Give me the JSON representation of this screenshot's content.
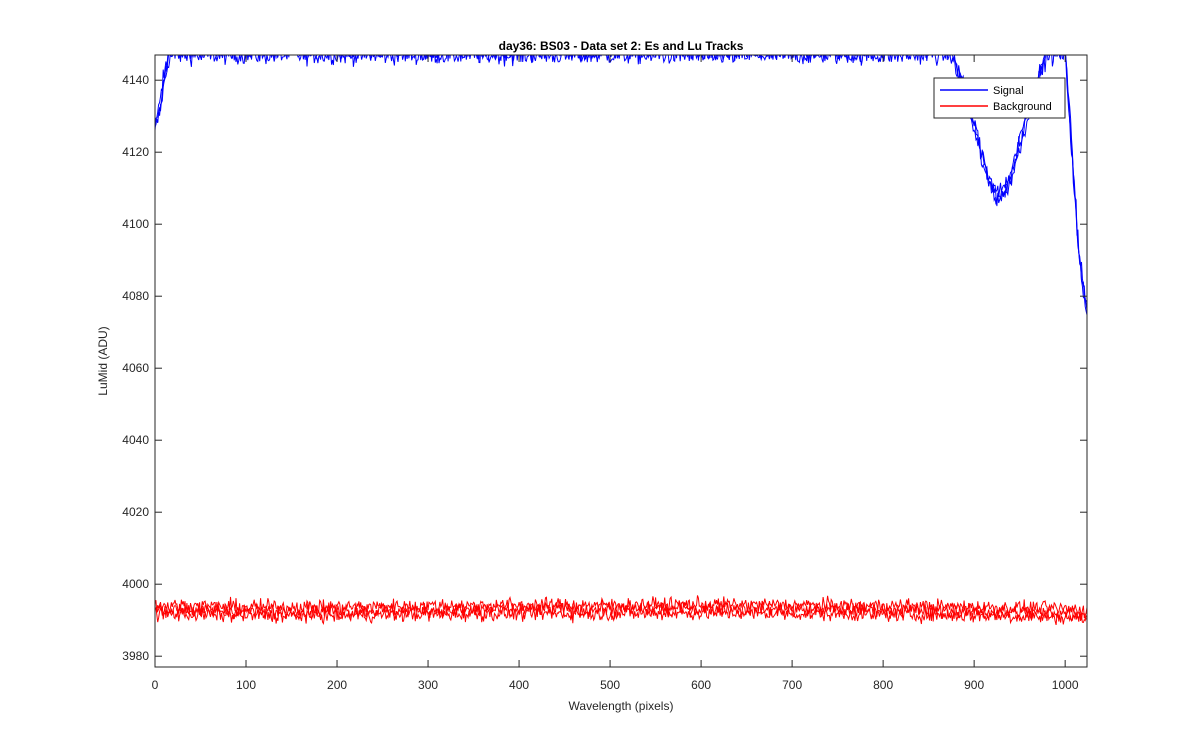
{
  "chart_data": {
    "type": "line",
    "title": "day36: BS03 - Data set 2: Es and Lu Tracks",
    "xlabel": "Wavelength (pixels)",
    "ylabel": "LuMid (ADU)",
    "xlim": [
      0,
      1024
    ],
    "ylim": [
      3977,
      4147
    ],
    "xticks": [
      0,
      100,
      200,
      300,
      400,
      500,
      600,
      700,
      800,
      900,
      1000
    ],
    "yticks": [
      3980,
      4000,
      4020,
      4040,
      4060,
      4080,
      4100,
      4120,
      4140
    ],
    "grid": false,
    "legend_position": "top-right",
    "series": [
      {
        "name": "Signal",
        "color": "#0000ff",
        "tracks": 3,
        "noise": 1.2,
        "points": [
          [
            0,
            4127
          ],
          [
            5,
            4132
          ],
          [
            10,
            4140
          ],
          [
            16,
            4148
          ],
          [
            875,
            4148
          ],
          [
            885,
            4140
          ],
          [
            895,
            4132
          ],
          [
            905,
            4122
          ],
          [
            915,
            4113
          ],
          [
            925,
            4108
          ],
          [
            932,
            4109
          ],
          [
            940,
            4113
          ],
          [
            950,
            4122
          ],
          [
            960,
            4132
          ],
          [
            970,
            4140
          ],
          [
            980,
            4148
          ],
          [
            1000,
            4148
          ],
          [
            1005,
            4130
          ],
          [
            1010,
            4110
          ],
          [
            1015,
            4092
          ],
          [
            1020,
            4082
          ],
          [
            1024,
            4077
          ]
        ]
      },
      {
        "name": "Background",
        "color": "#ff0000",
        "tracks": 3,
        "noise": 1.0,
        "points": [
          [
            0,
            3993
          ],
          [
            100,
            3992.5
          ],
          [
            200,
            3992.5
          ],
          [
            300,
            3992.8
          ],
          [
            400,
            3993
          ],
          [
            500,
            3993
          ],
          [
            600,
            3993.2
          ],
          [
            700,
            3993
          ],
          [
            800,
            3992.8
          ],
          [
            900,
            3992.5
          ],
          [
            1000,
            3992
          ],
          [
            1024,
            3991.5
          ]
        ]
      }
    ]
  }
}
